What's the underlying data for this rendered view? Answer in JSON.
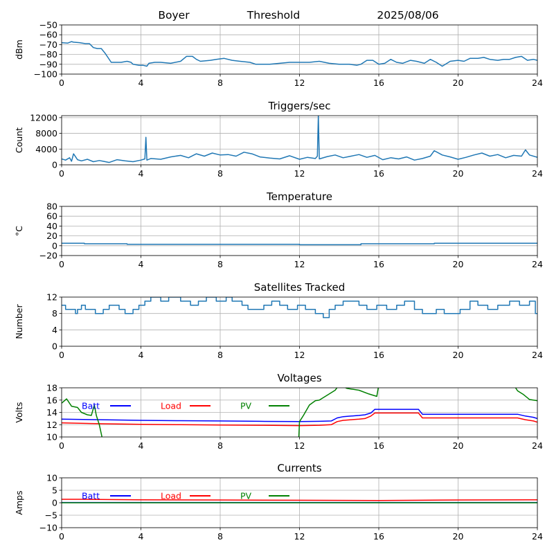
{
  "header": {
    "station": "Boyer",
    "label": "Threshold",
    "date": "2025/08/06"
  },
  "colors": {
    "series_default": "#1f77b4",
    "batt": "#0000ff",
    "load": "#ff0000",
    "pv": "#008000",
    "grid": "#b0b0b0",
    "axis": "#000000"
  },
  "chart_data": [
    {
      "type": "line",
      "title": "",
      "xlabel": "",
      "ylabel": "dBm",
      "xlim": [
        0,
        24
      ],
      "ylim": [
        -100,
        -50
      ],
      "xticks": [
        0,
        4,
        8,
        12,
        16,
        20,
        24
      ],
      "yticks": [
        -100,
        -90,
        -80,
        -70,
        -60,
        -50
      ],
      "grid": true,
      "series": [
        {
          "x": [
            0,
            0.3,
            0.5,
            0.6,
            0.9,
            1.2,
            1.4,
            1.6,
            1.8,
            2.0,
            2.2,
            2.5,
            3.0,
            3.3,
            3.5,
            3.6,
            3.9,
            4.1,
            4.3,
            4.4,
            4.7,
            5.0,
            5.5,
            6.0,
            6.3,
            6.6,
            6.8,
            7.0,
            7.5,
            7.8,
            8.2,
            8.6,
            9.0,
            9.5,
            9.8,
            10.5,
            11.0,
            11.5,
            12.0,
            12.5,
            13.0,
            13.5,
            14.0,
            14.5,
            14.9,
            15.1,
            15.4,
            15.7,
            16.0,
            16.3,
            16.6,
            16.9,
            17.2,
            17.6,
            17.9,
            18.3,
            18.6,
            18.9,
            19.2,
            19.6,
            20.0,
            20.3,
            20.6,
            21.0,
            21.3,
            21.6,
            22.0,
            22.3,
            22.6,
            22.9,
            23.2,
            23.5,
            23.8,
            24.0
          ],
          "y": [
            -68,
            -68.5,
            -67,
            -67.5,
            -68,
            -69,
            -69,
            -73,
            -74,
            -74,
            -79,
            -88,
            -88,
            -87,
            -88,
            -90,
            -91,
            -91,
            -92,
            -89,
            -88,
            -88,
            -89,
            -87,
            -82,
            -82,
            -85,
            -87,
            -86,
            -85,
            -84,
            -86,
            -87,
            -88,
            -90,
            -90,
            -89,
            -88,
            -88,
            -88,
            -87,
            -89,
            -90,
            -90,
            -91,
            -90,
            -86,
            -86,
            -90,
            -89,
            -85,
            -88,
            -89,
            -86,
            -87,
            -89,
            -85,
            -88,
            -92,
            -87,
            -86,
            -87,
            -84,
            -84,
            -83,
            -85,
            -86,
            -85,
            -85,
            -83,
            -82,
            -86,
            -85,
            -86
          ]
        }
      ]
    },
    {
      "type": "line",
      "title": "Triggers/sec",
      "xlabel": "",
      "ylabel": "Count",
      "xlim": [
        0,
        24
      ],
      "ylim": [
        0,
        12500
      ],
      "xticks": [
        0,
        4,
        8,
        12,
        16,
        20,
        24
      ],
      "yticks": [
        0,
        4000,
        8000,
        12000
      ],
      "grid": true,
      "series": [
        {
          "x": [
            0,
            0.2,
            0.4,
            0.5,
            0.6,
            0.8,
            1.0,
            1.3,
            1.6,
            1.9,
            2.1,
            2.4,
            2.8,
            3.2,
            3.6,
            4.0,
            4.2,
            4.25,
            4.3,
            4.5,
            5.0,
            5.5,
            6.0,
            6.4,
            6.8,
            7.2,
            7.6,
            8.0,
            8.4,
            8.8,
            9.2,
            9.6,
            10.0,
            10.5,
            11.0,
            11.5,
            12.0,
            12.4,
            12.8,
            12.9,
            12.95,
            13.0,
            13.4,
            13.8,
            14.2,
            14.6,
            15.0,
            15.4,
            15.8,
            16.2,
            16.6,
            17.0,
            17.4,
            17.8,
            18.2,
            18.6,
            18.8,
            19.2,
            19.6,
            20.0,
            20.4,
            20.8,
            21.2,
            21.6,
            22.0,
            22.4,
            22.8,
            23.2,
            23.4,
            23.6,
            24.0
          ],
          "y": [
            1500,
            1200,
            1800,
            900,
            2800,
            1300,
            1000,
            1400,
            800,
            1100,
            900,
            600,
            1300,
            1000,
            800,
            1200,
            1500,
            7000,
            1200,
            1600,
            1400,
            2000,
            2400,
            1800,
            2800,
            2200,
            3000,
            2500,
            2600,
            2200,
            3200,
            2800,
            2000,
            1700,
            1500,
            2300,
            1400,
            1900,
            1600,
            2200,
            12600,
            1500,
            2100,
            2500,
            1800,
            2200,
            2600,
            1900,
            2400,
            1300,
            1800,
            1500,
            2000,
            1200,
            1600,
            2200,
            3600,
            2500,
            2000,
            1400,
            1900,
            2500,
            3000,
            2200,
            2600,
            1800,
            2400,
            2200,
            3800,
            2500,
            1900
          ]
        }
      ]
    },
    {
      "type": "line",
      "title": "Temperature",
      "xlabel": "",
      "ylabel": "°C",
      "xlim": [
        0,
        24
      ],
      "ylim": [
        -20,
        80
      ],
      "xticks": [
        0,
        4,
        8,
        12,
        16,
        20,
        24
      ],
      "yticks": [
        -20,
        0,
        20,
        40,
        60,
        80
      ],
      "grid": true,
      "series": [
        {
          "x": [
            0,
            1.15,
            1.15,
            3.3,
            3.3,
            12.0,
            12.0,
            15.1,
            15.1,
            18.8,
            18.8,
            24.0
          ],
          "y": [
            5,
            5,
            4,
            4,
            3,
            3,
            2,
            2,
            4,
            4,
            5,
            5
          ]
        }
      ]
    },
    {
      "type": "line",
      "title": "Satellites Tracked",
      "xlabel": "",
      "ylabel": "Number",
      "xlim": [
        0,
        24
      ],
      "ylim": [
        0,
        12
      ],
      "xticks": [
        0,
        4,
        8,
        12,
        16,
        20,
        24
      ],
      "yticks": [
        0,
        4,
        8,
        12
      ],
      "grid": true,
      "series": [
        {
          "x": [
            0,
            0.2,
            0.2,
            0.7,
            0.7,
            0.8,
            0.8,
            1.0,
            1.0,
            1.2,
            1.2,
            1.7,
            1.7,
            2.1,
            2.1,
            2.4,
            2.4,
            2.9,
            2.9,
            3.2,
            3.2,
            3.6,
            3.6,
            3.9,
            3.9,
            4.2,
            4.2,
            4.5,
            4.5,
            5.0,
            5.0,
            5.4,
            5.4,
            6.0,
            6.0,
            6.5,
            6.5,
            6.9,
            6.9,
            7.3,
            7.3,
            7.8,
            7.8,
            8.3,
            8.3,
            8.6,
            8.6,
            9.1,
            9.1,
            9.4,
            9.4,
            10.2,
            10.2,
            10.6,
            10.6,
            11.0,
            11.0,
            11.4,
            11.4,
            11.9,
            11.9,
            12.3,
            12.3,
            12.8,
            12.8,
            13.2,
            13.2,
            13.5,
            13.5,
            13.8,
            13.8,
            14.2,
            14.2,
            15.0,
            15.0,
            15.4,
            15.4,
            15.9,
            15.9,
            16.4,
            16.4,
            16.9,
            16.9,
            17.3,
            17.3,
            17.8,
            17.8,
            18.2,
            18.2,
            18.9,
            18.9,
            19.3,
            19.3,
            20.1,
            20.1,
            20.6,
            20.6,
            21.0,
            21.0,
            21.5,
            21.5,
            22.0,
            22.0,
            22.6,
            22.6,
            23.1,
            23.1,
            23.6,
            23.6,
            23.9,
            23.9,
            24.0
          ],
          "y": [
            10,
            10,
            9,
            9,
            8,
            8,
            9,
            9,
            10,
            10,
            9,
            9,
            8,
            8,
            9,
            9,
            10,
            10,
            9,
            9,
            8,
            8,
            9,
            9,
            10,
            10,
            11,
            11,
            12,
            12,
            11,
            11,
            12,
            12,
            11,
            11,
            10,
            10,
            11,
            11,
            12,
            12,
            11,
            11,
            12,
            12,
            11,
            11,
            10,
            10,
            9,
            9,
            10,
            10,
            11,
            11,
            10,
            10,
            9,
            9,
            10,
            10,
            9,
            9,
            8,
            8,
            7,
            7,
            9,
            9,
            10,
            10,
            11,
            11,
            10,
            10,
            9,
            9,
            10,
            10,
            9,
            9,
            10,
            10,
            11,
            11,
            9,
            9,
            8,
            8,
            9,
            9,
            8,
            8,
            9,
            9,
            11,
            11,
            10,
            10,
            9,
            9,
            10,
            10,
            11,
            11,
            10,
            10,
            11,
            11,
            8,
            8
          ]
        }
      ]
    },
    {
      "type": "line",
      "title": "Voltages",
      "xlabel": "",
      "ylabel": "Volts",
      "xlim": [
        0,
        24
      ],
      "ylim": [
        10,
        18
      ],
      "xticks": [
        0,
        4,
        8,
        12,
        16,
        20,
        24
      ],
      "yticks": [
        10,
        12,
        14,
        16,
        18
      ],
      "grid": true,
      "legend": "top-left",
      "series": [
        {
          "name": "Batt",
          "color": "#0000ff",
          "x": [
            0,
            2,
            4,
            6,
            8,
            10,
            12,
            13.0,
            13.6,
            13.9,
            14.2,
            14.6,
            15.0,
            15.3,
            15.6,
            15.8,
            16.0,
            17.0,
            18.0,
            18.2,
            20,
            22,
            23.0,
            23.4,
            23.8,
            24.0
          ],
          "y": [
            12.9,
            12.8,
            12.7,
            12.65,
            12.6,
            12.55,
            12.5,
            12.55,
            12.6,
            13.1,
            13.3,
            13.4,
            13.5,
            13.6,
            13.9,
            14.5,
            14.5,
            14.5,
            14.5,
            13.7,
            13.7,
            13.7,
            13.7,
            13.4,
            13.2,
            13.0
          ]
        },
        {
          "name": "Load",
          "color": "#ff0000",
          "x": [
            0,
            2,
            4,
            6,
            8,
            10,
            12,
            13.0,
            13.6,
            13.9,
            14.2,
            14.6,
            15.0,
            15.3,
            15.6,
            15.8,
            16.0,
            17.0,
            18.0,
            18.2,
            20,
            22,
            23.0,
            23.4,
            23.8,
            24.0
          ],
          "y": [
            12.3,
            12.15,
            12.05,
            12.0,
            11.95,
            11.9,
            11.85,
            11.9,
            12.0,
            12.5,
            12.7,
            12.8,
            12.9,
            13.0,
            13.4,
            13.9,
            13.9,
            13.9,
            13.9,
            13.1,
            13.1,
            13.1,
            13.1,
            12.8,
            12.6,
            12.4
          ]
        },
        {
          "name": "PV",
          "color": "#008000",
          "x": [
            0,
            0.25,
            0.5,
            0.8,
            1.0,
            1.3,
            1.5,
            1.65,
            1.75,
            1.9,
            2.0,
            2.1,
            11.95,
            12.0,
            12.2,
            12.5,
            12.8,
            13.0,
            13.4,
            13.8,
            14.0,
            14.4,
            15.0,
            15.5,
            15.9,
            16.0,
            22.8,
            23.0,
            23.3,
            23.6,
            24.0
          ],
          "y": [
            15.5,
            16.2,
            15.0,
            14.8,
            14.0,
            13.6,
            13.5,
            15.2,
            13.5,
            12.0,
            10.5,
            9.0,
            9.0,
            12.5,
            13.5,
            15.2,
            15.9,
            16.0,
            16.8,
            17.6,
            18.5,
            17.9,
            17.6,
            17.0,
            16.6,
            18.5,
            18.5,
            17.5,
            16.9,
            16.1,
            15.9
          ]
        }
      ]
    },
    {
      "type": "line",
      "title": "Currents",
      "xlabel": "",
      "ylabel": "Amps",
      "xlim": [
        0,
        24
      ],
      "ylim": [
        -10,
        10
      ],
      "xticks": [
        0,
        4,
        8,
        12,
        16,
        20,
        24
      ],
      "yticks": [
        -10,
        -5,
        0,
        5,
        10
      ],
      "grid": true,
      "legend": "top-left",
      "series": [
        {
          "name": "Batt",
          "color": "#0000ff",
          "x": [
            0,
            24
          ],
          "y": [
            0.1,
            0.1
          ]
        },
        {
          "name": "Load",
          "color": "#ff0000",
          "x": [
            0,
            1,
            4,
            8,
            12,
            16,
            18,
            20,
            24
          ],
          "y": [
            1.4,
            1.4,
            1.2,
            1.1,
            1.0,
            0.9,
            1.0,
            1.1,
            1.2
          ]
        },
        {
          "name": "PV",
          "color": "#008000",
          "x": [
            0,
            24
          ],
          "y": [
            0.0,
            0.0
          ]
        }
      ]
    }
  ]
}
